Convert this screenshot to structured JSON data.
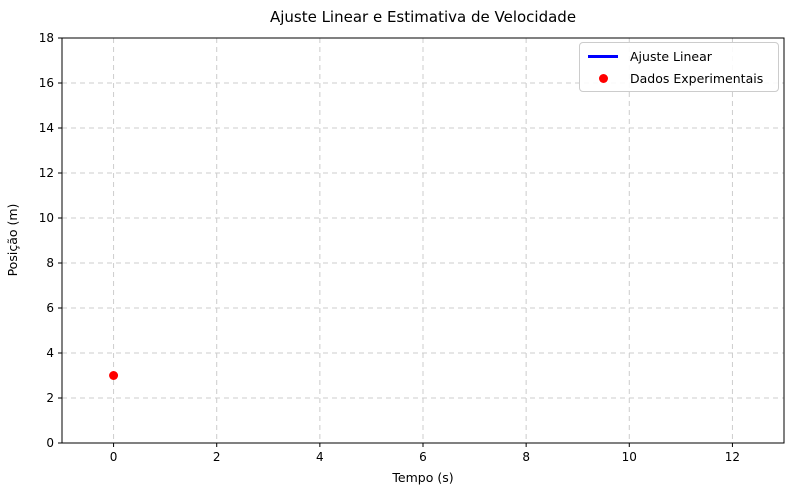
{
  "chart_data": {
    "type": "scatter",
    "title": "Ajuste Linear e Estimativa de Velocidade",
    "xlabel": "Tempo (s)",
    "ylabel": "Posição (m)",
    "xlim": [
      -1,
      13
    ],
    "ylim": [
      0,
      18
    ],
    "xticks": [
      0,
      2,
      4,
      6,
      8,
      10,
      12
    ],
    "yticks": [
      0,
      2,
      4,
      6,
      8,
      10,
      12,
      14,
      16,
      18
    ],
    "grid": true,
    "grid_style": "dashed",
    "grid_color": "#cccccc",
    "background_color": "#ffffff",
    "legend": {
      "position": "upper right",
      "entries": [
        {
          "label": "Ajuste Linear",
          "marker": "line",
          "color": "#0000ff"
        },
        {
          "label": "Dados Experimentais",
          "marker": "dot",
          "color": "#ff0000"
        }
      ]
    },
    "series": [
      {
        "name": "Ajuste Linear",
        "type": "line",
        "color": "#0000ff",
        "points": []
      },
      {
        "name": "Dados Experimentais",
        "type": "scatter",
        "color": "#ff0000",
        "marker_radius": 4.5,
        "points": [
          [
            0,
            3
          ]
        ]
      }
    ]
  }
}
